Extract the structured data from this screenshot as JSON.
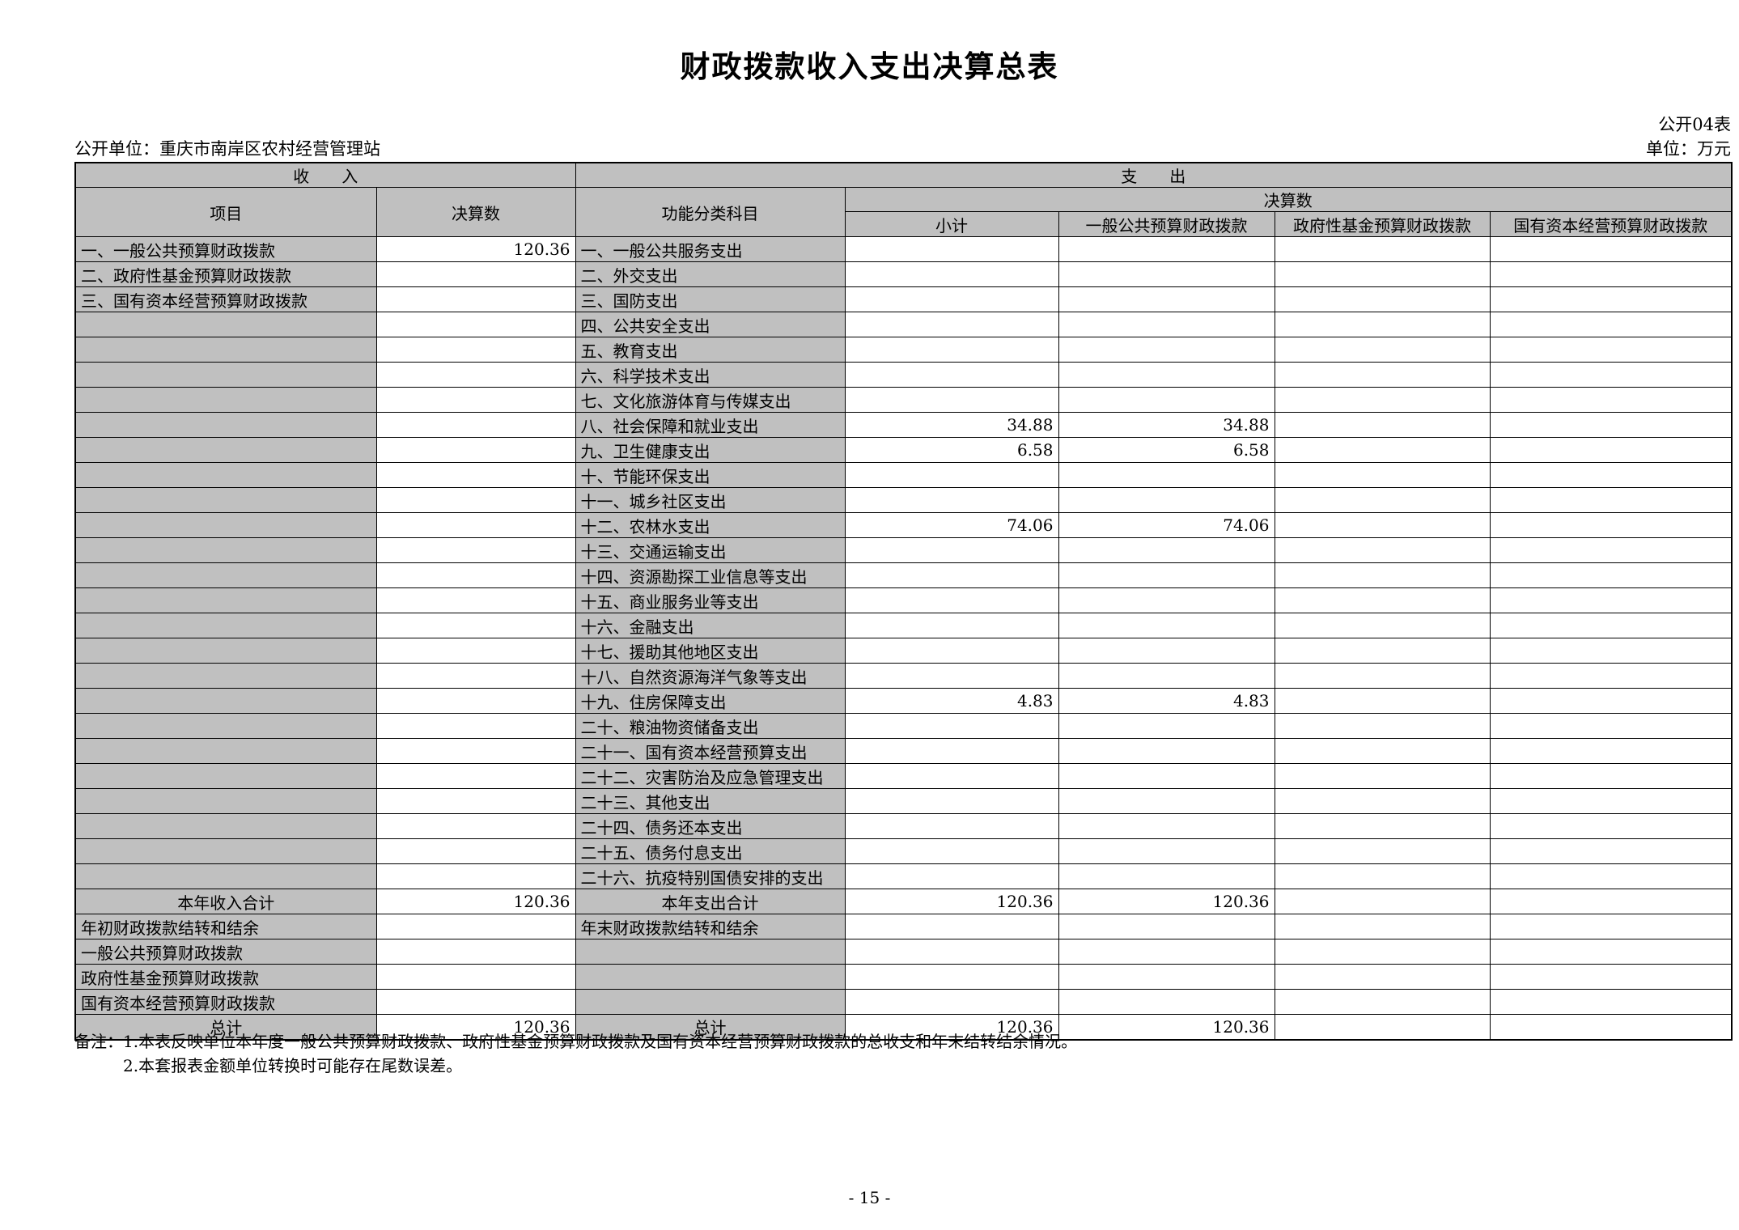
{
  "page": {
    "title": "财政拨款收入支出决算总表",
    "form_number": "公开04表",
    "publisher_label": "公开单位：",
    "publisher_name": "重庆市南岸区农村经营管理站",
    "unit_note": "单位：万元",
    "notes": [
      "备注：1.本表反映单位本年度一般公共预算财政拨款、政府性基金预算财政拨款及国有资本经营预算财政拨款的总收支和年末结转结余情况。",
      "2.本套报表金额单位转换时可能存在尾数误差。"
    ],
    "page_number": "- 15 -"
  },
  "colors": {
    "cell_grey": "#c0c0c0",
    "border": "#000000",
    "background": "#ffffff"
  },
  "table": {
    "income_title": "收　　入",
    "expense_title": "支　　出",
    "columns": {
      "item": "项目",
      "amount": "决算数",
      "function": "功能分类科目",
      "amount_group": "决算数",
      "subtotal": "小计",
      "general": "一般公共预算财政拨款",
      "gov_fund": "政府性基金预算财政拨款",
      "state_capital": "国有资本经营预算财政拨款"
    },
    "rows": [
      {
        "income": "一、一般公共预算财政拨款",
        "income_value": "120.36",
        "expense": "一、一般公共服务支出",
        "subtotal": "",
        "general": "",
        "gov_fund": "",
        "state_capital": "",
        "total": false,
        "indent": false
      },
      {
        "income": "二、政府性基金预算财政拨款",
        "income_value": "",
        "expense": "二、外交支出",
        "subtotal": "",
        "general": "",
        "gov_fund": "",
        "state_capital": "",
        "total": false,
        "indent": false
      },
      {
        "income": "三、国有资本经营预算财政拨款",
        "income_value": "",
        "expense": "三、国防支出",
        "subtotal": "",
        "general": "",
        "gov_fund": "",
        "state_capital": "",
        "total": false,
        "indent": false
      },
      {
        "income": "",
        "income_value": "",
        "expense": "四、公共安全支出",
        "subtotal": "",
        "general": "",
        "gov_fund": "",
        "state_capital": "",
        "total": false,
        "indent": false
      },
      {
        "income": "",
        "income_value": "",
        "expense": "五、教育支出",
        "subtotal": "",
        "general": "",
        "gov_fund": "",
        "state_capital": "",
        "total": false,
        "indent": false
      },
      {
        "income": "",
        "income_value": "",
        "expense": "六、科学技术支出",
        "subtotal": "",
        "general": "",
        "gov_fund": "",
        "state_capital": "",
        "total": false,
        "indent": false
      },
      {
        "income": "",
        "income_value": "",
        "expense": "七、文化旅游体育与传媒支出",
        "subtotal": "",
        "general": "",
        "gov_fund": "",
        "state_capital": "",
        "total": false,
        "indent": false
      },
      {
        "income": "",
        "income_value": "",
        "expense": "八、社会保障和就业支出",
        "subtotal": "34.88",
        "general": "34.88",
        "gov_fund": "",
        "state_capital": "",
        "total": false,
        "indent": false
      },
      {
        "income": "",
        "income_value": "",
        "expense": "九、卫生健康支出",
        "subtotal": "6.58",
        "general": "6.58",
        "gov_fund": "",
        "state_capital": "",
        "total": false,
        "indent": false
      },
      {
        "income": "",
        "income_value": "",
        "expense": "十、节能环保支出",
        "subtotal": "",
        "general": "",
        "gov_fund": "",
        "state_capital": "",
        "total": false,
        "indent": false
      },
      {
        "income": "",
        "income_value": "",
        "expense": "十一、城乡社区支出",
        "subtotal": "",
        "general": "",
        "gov_fund": "",
        "state_capital": "",
        "total": false,
        "indent": false
      },
      {
        "income": "",
        "income_value": "",
        "expense": "十二、农林水支出",
        "subtotal": "74.06",
        "general": "74.06",
        "gov_fund": "",
        "state_capital": "",
        "total": false,
        "indent": false
      },
      {
        "income": "",
        "income_value": "",
        "expense": "十三、交通运输支出",
        "subtotal": "",
        "general": "",
        "gov_fund": "",
        "state_capital": "",
        "total": false,
        "indent": false
      },
      {
        "income": "",
        "income_value": "",
        "expense": "十四、资源勘探工业信息等支出",
        "subtotal": "",
        "general": "",
        "gov_fund": "",
        "state_capital": "",
        "total": false,
        "indent": false
      },
      {
        "income": "",
        "income_value": "",
        "expense": "十五、商业服务业等支出",
        "subtotal": "",
        "general": "",
        "gov_fund": "",
        "state_capital": "",
        "total": false,
        "indent": false
      },
      {
        "income": "",
        "income_value": "",
        "expense": "十六、金融支出",
        "subtotal": "",
        "general": "",
        "gov_fund": "",
        "state_capital": "",
        "total": false,
        "indent": false
      },
      {
        "income": "",
        "income_value": "",
        "expense": "十七、援助其他地区支出",
        "subtotal": "",
        "general": "",
        "gov_fund": "",
        "state_capital": "",
        "total": false,
        "indent": false
      },
      {
        "income": "",
        "income_value": "",
        "expense": "十八、自然资源海洋气象等支出",
        "subtotal": "",
        "general": "",
        "gov_fund": "",
        "state_capital": "",
        "total": false,
        "indent": false
      },
      {
        "income": "",
        "income_value": "",
        "expense": "十九、住房保障支出",
        "subtotal": "4.83",
        "general": "4.83",
        "gov_fund": "",
        "state_capital": "",
        "total": false,
        "indent": false
      },
      {
        "income": "",
        "income_value": "",
        "expense": "二十、粮油物资储备支出",
        "subtotal": "",
        "general": "",
        "gov_fund": "",
        "state_capital": "",
        "total": false,
        "indent": false
      },
      {
        "income": "",
        "income_value": "",
        "expense": "二十一、国有资本经营预算支出",
        "subtotal": "",
        "general": "",
        "gov_fund": "",
        "state_capital": "",
        "total": false,
        "indent": false
      },
      {
        "income": "",
        "income_value": "",
        "expense": "二十二、灾害防治及应急管理支出",
        "subtotal": "",
        "general": "",
        "gov_fund": "",
        "state_capital": "",
        "total": false,
        "indent": false
      },
      {
        "income": "",
        "income_value": "",
        "expense": "二十三、其他支出",
        "subtotal": "",
        "general": "",
        "gov_fund": "",
        "state_capital": "",
        "total": false,
        "indent": false
      },
      {
        "income": "",
        "income_value": "",
        "expense": "二十四、债务还本支出",
        "subtotal": "",
        "general": "",
        "gov_fund": "",
        "state_capital": "",
        "total": false,
        "indent": false
      },
      {
        "income": "",
        "income_value": "",
        "expense": "二十五、债务付息支出",
        "subtotal": "",
        "general": "",
        "gov_fund": "",
        "state_capital": "",
        "total": false,
        "indent": false
      },
      {
        "income": "",
        "income_value": "",
        "expense": "二十六、抗疫特别国债安排的支出",
        "subtotal": "",
        "general": "",
        "gov_fund": "",
        "state_capital": "",
        "total": false,
        "indent": false
      },
      {
        "income": "本年收入合计",
        "income_value": "120.36",
        "expense": "本年支出合计",
        "subtotal": "120.36",
        "general": "120.36",
        "gov_fund": "",
        "state_capital": "",
        "total": true,
        "indent": false
      },
      {
        "income": "年初财政拨款结转和结余",
        "income_value": "",
        "expense": "年末财政拨款结转和结余",
        "subtotal": "",
        "general": "",
        "gov_fund": "",
        "state_capital": "",
        "total": false,
        "indent": false
      },
      {
        "income": "一般公共预算财政拨款",
        "income_value": "",
        "expense": "",
        "subtotal": "",
        "general": "",
        "gov_fund": "",
        "state_capital": "",
        "total": false,
        "indent": true
      },
      {
        "income": "政府性基金预算财政拨款",
        "income_value": "",
        "expense": "",
        "subtotal": "",
        "general": "",
        "gov_fund": "",
        "state_capital": "",
        "total": false,
        "indent": true
      },
      {
        "income": "国有资本经营预算财政拨款",
        "income_value": "",
        "expense": "",
        "subtotal": "",
        "general": "",
        "gov_fund": "",
        "state_capital": "",
        "total": false,
        "indent": true
      },
      {
        "income": "总计",
        "income_value": "120.36",
        "expense": "总计",
        "subtotal": "120.36",
        "general": "120.36",
        "gov_fund": "",
        "state_capital": "",
        "total": true,
        "indent": false
      }
    ]
  }
}
